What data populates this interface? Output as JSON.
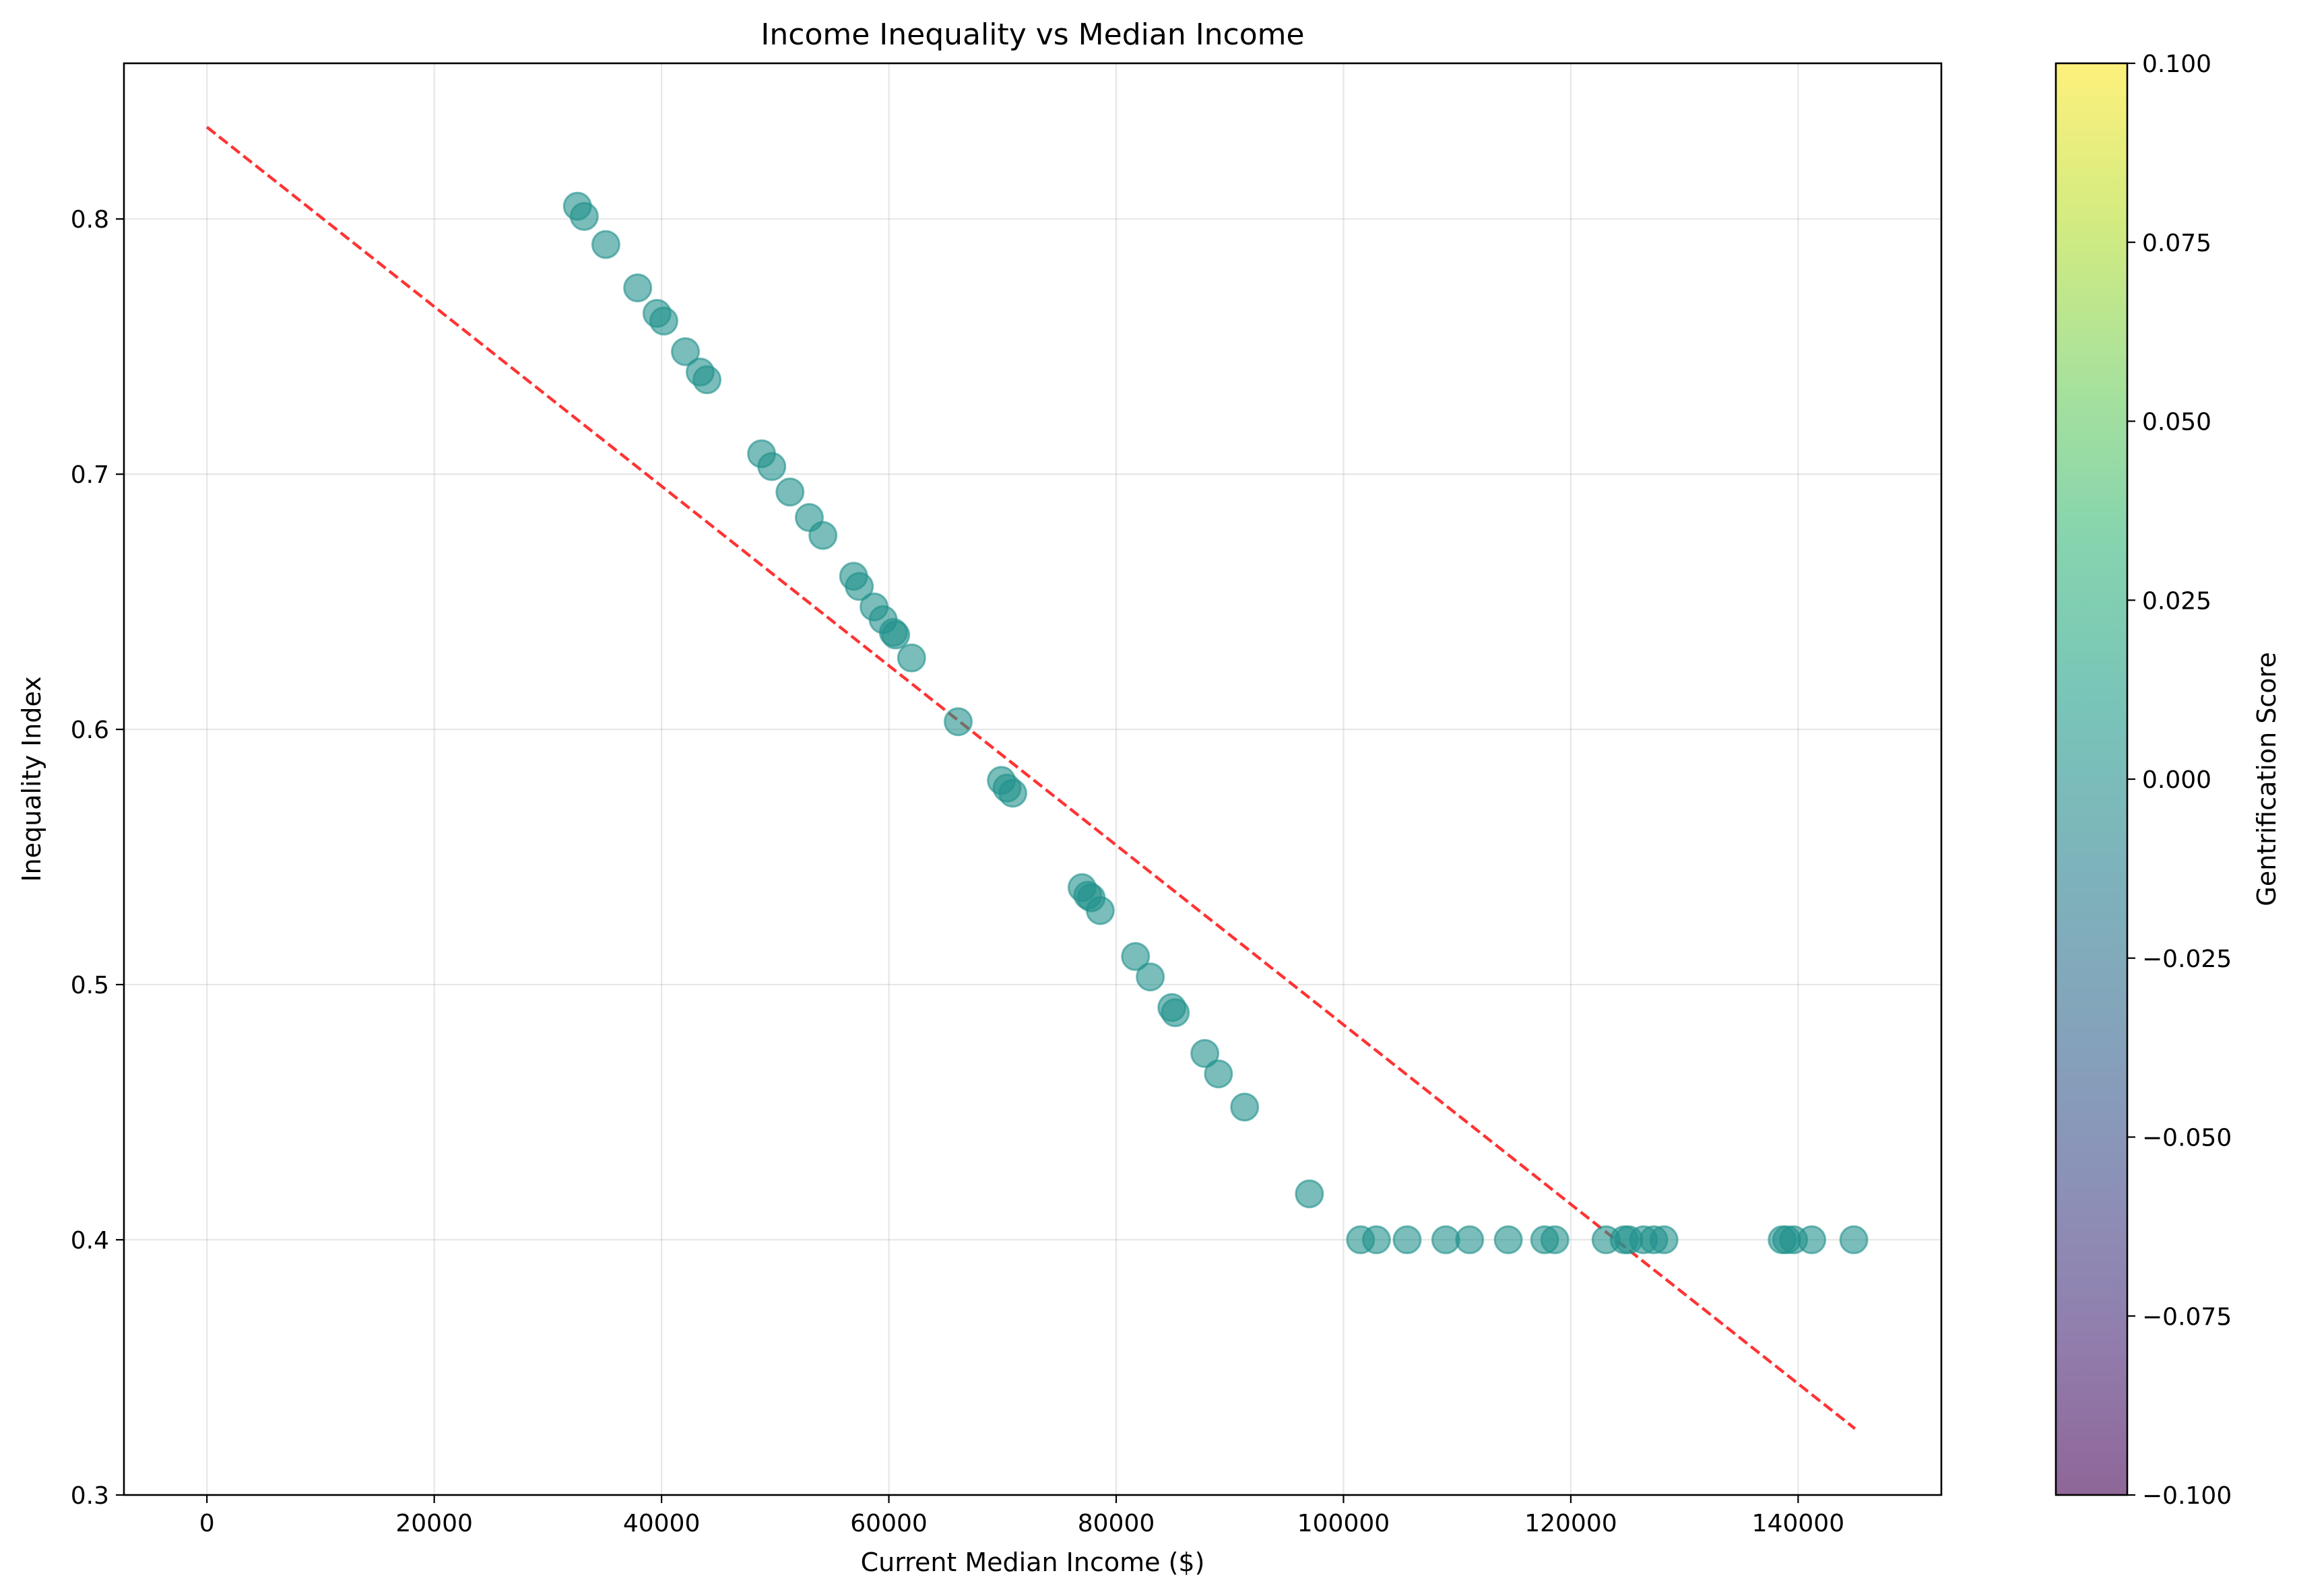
{
  "chart_data": {
    "type": "scatter",
    "title": "Income Inequality vs Median Income",
    "xlabel": "Current Median Income ($)",
    "ylabel": "Inequality Index",
    "xlim": [
      -7300,
      152600
    ],
    "ylim": [
      0.3,
      0.861
    ],
    "xticks": [
      0,
      20000,
      40000,
      60000,
      80000,
      100000,
      120000,
      140000
    ],
    "xtick_labels": [
      "0",
      "20000",
      "40000",
      "60000",
      "80000",
      "100000",
      "120000",
      "140000"
    ],
    "yticks": [
      0.3,
      0.4,
      0.5,
      0.6,
      0.7,
      0.8
    ],
    "ytick_labels": [
      "0.3",
      "0.4",
      "0.5",
      "0.6",
      "0.7",
      "0.8"
    ],
    "grid": true,
    "points": {
      "color": "#21918c",
      "alpha": 0.6,
      "x": [
        32600,
        33200,
        35100,
        37900,
        39600,
        40200,
        42100,
        43400,
        44000,
        48800,
        49700,
        51300,
        53000,
        54200,
        56900,
        57400,
        58700,
        59500,
        60400,
        60600,
        62000,
        66100,
        69900,
        70400,
        70900,
        77000,
        77500,
        77800,
        78600,
        81700,
        83000,
        84900,
        85200,
        87800,
        89000,
        91300,
        97000,
        101500,
        102900,
        105600,
        109000,
        111100,
        114500,
        117700,
        118600,
        123100,
        124700,
        125100,
        126400,
        127300,
        128200,
        138600,
        139000,
        139600,
        141200,
        144900
      ],
      "y": [
        0.805,
        0.801,
        0.79,
        0.773,
        0.763,
        0.76,
        0.748,
        0.74,
        0.737,
        0.708,
        0.703,
        0.693,
        0.683,
        0.676,
        0.66,
        0.656,
        0.648,
        0.643,
        0.638,
        0.637,
        0.628,
        0.603,
        0.58,
        0.577,
        0.575,
        0.538,
        0.535,
        0.534,
        0.529,
        0.511,
        0.503,
        0.491,
        0.489,
        0.473,
        0.465,
        0.452,
        0.418,
        0.4,
        0.4,
        0.4,
        0.4,
        0.4,
        0.4,
        0.4,
        0.4,
        0.4,
        0.4,
        0.4,
        0.4,
        0.4,
        0.4,
        0.4,
        0.4,
        0.4,
        0.4,
        0.4
      ],
      "gentrification_score": 0.0
    },
    "trendline": {
      "color": "#ff0000",
      "style": "dashed",
      "x": [
        0,
        145000
      ],
      "y": [
        0.836,
        0.326
      ]
    },
    "colorbar": {
      "label": "Gentrification Score",
      "colormap": "viridis",
      "alpha": 0.6,
      "range": [
        -0.1,
        0.1
      ],
      "ticks": [
        -0.1,
        -0.075,
        -0.05,
        -0.025,
        0.0,
        0.025,
        0.05,
        0.075,
        0.1
      ],
      "tick_labels": [
        "−0.100",
        "−0.075",
        "−0.050",
        "−0.025",
        "0.000",
        "0.025",
        "0.050",
        "0.075",
        "0.100"
      ],
      "stops": [
        "#440154",
        "#482878",
        "#3e4989",
        "#31688e",
        "#26828e",
        "#1f9e89",
        "#35b779",
        "#6ece58",
        "#b5de2b",
        "#fde725"
      ]
    }
  }
}
